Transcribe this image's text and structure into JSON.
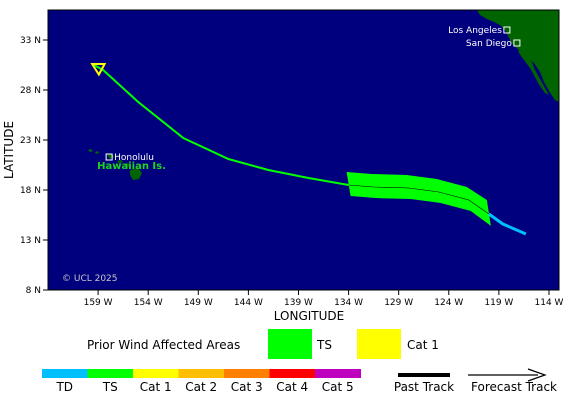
{
  "map": {
    "x_label": "LONGITUDE",
    "y_label": "LATITUDE",
    "lon_ticks": [
      "159 W",
      "154 W",
      "149 W",
      "144 W",
      "139 W",
      "134 W",
      "129 W",
      "124 W",
      "119 W",
      "114 W"
    ],
    "lat_ticks": [
      "33 N",
      "28 N",
      "23 N",
      "18 N",
      "13 N",
      "8 N"
    ],
    "lon_range": [
      -164,
      -113
    ],
    "lat_range": [
      8,
      36
    ],
    "copyright": "© UCL 2025",
    "colors": {
      "ocean": "#00007f",
      "land": "#006400",
      "ts": "#00ff00",
      "td": "#00bfff",
      "forecast_arrow": "#ffff00"
    }
  },
  "places": {
    "los_angeles": {
      "label": "Los Angeles",
      "lon": -118.2,
      "lat": 34.0
    },
    "san_diego": {
      "label": "San Diego",
      "lon": -117.2,
      "lat": 32.7
    },
    "honolulu": {
      "label": "Honolulu",
      "lon": -157.9,
      "lat": 21.3
    },
    "hawaiian_islands": {
      "label": "Hawaiian Is.",
      "lon": -157.0,
      "lat": 20.3
    }
  },
  "track": {
    "past": [
      {
        "lon": -116.3,
        "lat": 13.6,
        "category": "TD"
      },
      {
        "lon": -118.6,
        "lat": 14.6,
        "category": "TD"
      },
      {
        "lon": -120.0,
        "lat": 15.6,
        "category": "TS"
      },
      {
        "lon": -122.0,
        "lat": 17.0,
        "category": "TS"
      },
      {
        "lon": -125.0,
        "lat": 17.8,
        "category": "TS"
      },
      {
        "lon": -128.0,
        "lat": 18.2,
        "category": "TS"
      },
      {
        "lon": -131.5,
        "lat": 18.3,
        "category": "TS"
      },
      {
        "lon": -134.0,
        "lat": 18.5,
        "category": "TS"
      },
      {
        "lon": -138.0,
        "lat": 19.2,
        "category": "TS"
      },
      {
        "lon": -142.0,
        "lat": 20.0,
        "category": "TS"
      },
      {
        "lon": -146.0,
        "lat": 21.1,
        "category": "TS"
      },
      {
        "lon": -150.5,
        "lat": 23.2,
        "category": "TS"
      },
      {
        "lon": -155.0,
        "lat": 26.8,
        "category": "TS"
      },
      {
        "lon": -158.5,
        "lat": 30.0,
        "category": "TS"
      }
    ],
    "forecast_end": {
      "lon": -159.6,
      "lat": 30.6
    }
  },
  "legend": {
    "prior_label": "Prior Wind Affected Areas",
    "ts_label": "TS",
    "cat1_label": "Cat 1",
    "scale": [
      {
        "label": "TD",
        "color": "#00bfff"
      },
      {
        "label": "TS",
        "color": "#00ff00"
      },
      {
        "label": "Cat 1",
        "color": "#ffff00"
      },
      {
        "label": "Cat 2",
        "color": "#ffbf00"
      },
      {
        "label": "Cat 3",
        "color": "#ff7f00"
      },
      {
        "label": "Cat 4",
        "color": "#ff0000"
      },
      {
        "label": "Cat 5",
        "color": "#bf00bf"
      }
    ],
    "past_track_label": "Past Track",
    "forecast_track_label": "Forecast Track"
  }
}
